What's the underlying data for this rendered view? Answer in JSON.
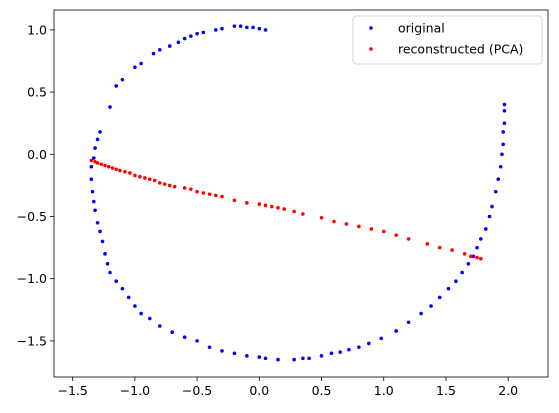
{
  "chart_data": {
    "type": "scatter",
    "title": "",
    "xlabel": "",
    "ylabel": "",
    "xlim": [
      -1.65,
      2.32
    ],
    "ylim": [
      -1.79,
      1.16
    ],
    "grid": false,
    "legend_position": "top-right",
    "xticks": [
      {
        "value": -1.5,
        "label": "−1.5"
      },
      {
        "value": -1.0,
        "label": "−1.0"
      },
      {
        "value": -0.5,
        "label": "−0.5"
      },
      {
        "value": 0.0,
        "label": "0.0"
      },
      {
        "value": 0.5,
        "label": "0.5"
      },
      {
        "value": 1.0,
        "label": "1.0"
      },
      {
        "value": 1.5,
        "label": "1.5"
      },
      {
        "value": 2.0,
        "label": "2.0"
      }
    ],
    "yticks": [
      {
        "value": 1.0,
        "label": "1.0"
      },
      {
        "value": 0.5,
        "label": "0.5"
      },
      {
        "value": 0.0,
        "label": "0.0"
      },
      {
        "value": -0.5,
        "label": "−0.5"
      },
      {
        "value": -1.0,
        "label": "−1.0"
      },
      {
        "value": -1.5,
        "label": "−1.5"
      }
    ],
    "series": [
      {
        "name": "original",
        "color": "#0000ff",
        "points": [
          [
            -0.2,
            1.03
          ],
          [
            -0.15,
            1.03
          ],
          [
            -0.1,
            1.02
          ],
          [
            -0.05,
            1.02
          ],
          [
            0.0,
            1.01
          ],
          [
            0.05,
            1.0
          ],
          [
            -0.3,
            1.01
          ],
          [
            -0.35,
            1.0
          ],
          [
            -0.45,
            0.98
          ],
          [
            -0.5,
            0.97
          ],
          [
            -0.55,
            0.95
          ],
          [
            -0.6,
            0.93
          ],
          [
            -0.65,
            0.9
          ],
          [
            -0.72,
            0.87
          ],
          [
            -0.8,
            0.84
          ],
          [
            -0.85,
            0.81
          ],
          [
            -0.95,
            0.73
          ],
          [
            -1.0,
            0.7
          ],
          [
            -1.1,
            0.6
          ],
          [
            -1.15,
            0.55
          ],
          [
            -1.2,
            0.38
          ],
          [
            -1.28,
            0.18
          ],
          [
            -1.3,
            0.12
          ],
          [
            -1.32,
            0.05
          ],
          [
            -1.33,
            -0.03
          ],
          [
            -1.35,
            -0.1
          ],
          [
            -1.35,
            -0.2
          ],
          [
            -1.34,
            -0.3
          ],
          [
            -1.33,
            -0.38
          ],
          [
            -1.32,
            -0.45
          ],
          [
            -1.3,
            -0.55
          ],
          [
            -1.28,
            -0.62
          ],
          [
            -1.26,
            -0.7
          ],
          [
            -1.24,
            -0.8
          ],
          [
            -1.22,
            -0.88
          ],
          [
            -1.2,
            -0.95
          ],
          [
            -1.15,
            -1.02
          ],
          [
            -1.1,
            -1.08
          ],
          [
            -1.05,
            -1.15
          ],
          [
            -1.0,
            -1.22
          ],
          [
            -0.95,
            -1.28
          ],
          [
            -0.88,
            -1.32
          ],
          [
            -0.8,
            -1.38
          ],
          [
            -0.7,
            -1.43
          ],
          [
            -0.6,
            -1.47
          ],
          [
            -0.5,
            -1.5
          ],
          [
            -0.4,
            -1.55
          ],
          [
            -0.3,
            -1.58
          ],
          [
            -0.2,
            -1.6
          ],
          [
            -0.1,
            -1.62
          ],
          [
            0.0,
            -1.63
          ],
          [
            0.05,
            -1.64
          ],
          [
            0.15,
            -1.65
          ],
          [
            0.28,
            -1.65
          ],
          [
            0.35,
            -1.64
          ],
          [
            0.4,
            -1.64
          ],
          [
            0.5,
            -1.62
          ],
          [
            0.58,
            -1.6
          ],
          [
            0.65,
            -1.59
          ],
          [
            0.72,
            -1.57
          ],
          [
            0.8,
            -1.55
          ],
          [
            0.88,
            -1.52
          ],
          [
            0.98,
            -1.48
          ],
          [
            1.1,
            -1.42
          ],
          [
            1.2,
            -1.35
          ],
          [
            1.3,
            -1.28
          ],
          [
            1.38,
            -1.22
          ],
          [
            1.45,
            -1.15
          ],
          [
            1.52,
            -1.08
          ],
          [
            1.58,
            -1.02
          ],
          [
            1.63,
            -0.95
          ],
          [
            1.68,
            -0.88
          ],
          [
            1.72,
            -0.82
          ],
          [
            1.75,
            -0.75
          ],
          [
            1.78,
            -0.68
          ],
          [
            1.82,
            -0.6
          ],
          [
            1.85,
            -0.5
          ],
          [
            1.87,
            -0.42
          ],
          [
            1.9,
            -0.3
          ],
          [
            1.92,
            -0.2
          ],
          [
            1.94,
            -0.1
          ],
          [
            1.95,
            0.0
          ],
          [
            1.96,
            0.08
          ],
          [
            1.96,
            0.18
          ],
          [
            1.97,
            0.25
          ],
          [
            1.97,
            0.35
          ],
          [
            1.97,
            0.4
          ]
        ]
      },
      {
        "name": "reconstructed (PCA)",
        "color": "#ff0000",
        "points": [
          [
            -1.35,
            -0.05
          ],
          [
            -1.32,
            -0.06
          ],
          [
            -1.3,
            -0.07
          ],
          [
            -1.27,
            -0.08
          ],
          [
            -1.24,
            -0.09
          ],
          [
            -1.21,
            -0.1
          ],
          [
            -1.18,
            -0.11
          ],
          [
            -1.15,
            -0.12
          ],
          [
            -1.12,
            -0.13
          ],
          [
            -1.08,
            -0.14
          ],
          [
            -1.04,
            -0.15
          ],
          [
            -1.0,
            -0.17
          ],
          [
            -0.96,
            -0.18
          ],
          [
            -0.92,
            -0.19
          ],
          [
            -0.88,
            -0.2
          ],
          [
            -0.84,
            -0.21
          ],
          [
            -0.8,
            -0.23
          ],
          [
            -0.76,
            -0.24
          ],
          [
            -0.72,
            -0.25
          ],
          [
            -0.68,
            -0.26
          ],
          [
            -0.6,
            -0.27
          ],
          [
            -0.55,
            -0.28
          ],
          [
            -0.5,
            -0.3
          ],
          [
            -0.45,
            -0.31
          ],
          [
            -0.4,
            -0.32
          ],
          [
            -0.35,
            -0.33
          ],
          [
            -0.3,
            -0.34
          ],
          [
            -0.2,
            -0.37
          ],
          [
            -0.1,
            -0.39
          ],
          [
            0.0,
            -0.4
          ],
          [
            0.05,
            -0.41
          ],
          [
            0.1,
            -0.42
          ],
          [
            0.15,
            -0.43
          ],
          [
            0.2,
            -0.44
          ],
          [
            0.28,
            -0.46
          ],
          [
            0.35,
            -0.48
          ],
          [
            0.5,
            -0.51
          ],
          [
            0.6,
            -0.54
          ],
          [
            0.7,
            -0.56
          ],
          [
            0.8,
            -0.58
          ],
          [
            0.9,
            -0.6
          ],
          [
            1.0,
            -0.62
          ],
          [
            1.1,
            -0.65
          ],
          [
            1.2,
            -0.68
          ],
          [
            1.35,
            -0.72
          ],
          [
            1.45,
            -0.75
          ],
          [
            1.55,
            -0.77
          ],
          [
            1.65,
            -0.8
          ],
          [
            1.7,
            -0.82
          ],
          [
            1.75,
            -0.83
          ],
          [
            1.78,
            -0.84
          ]
        ]
      }
    ]
  }
}
